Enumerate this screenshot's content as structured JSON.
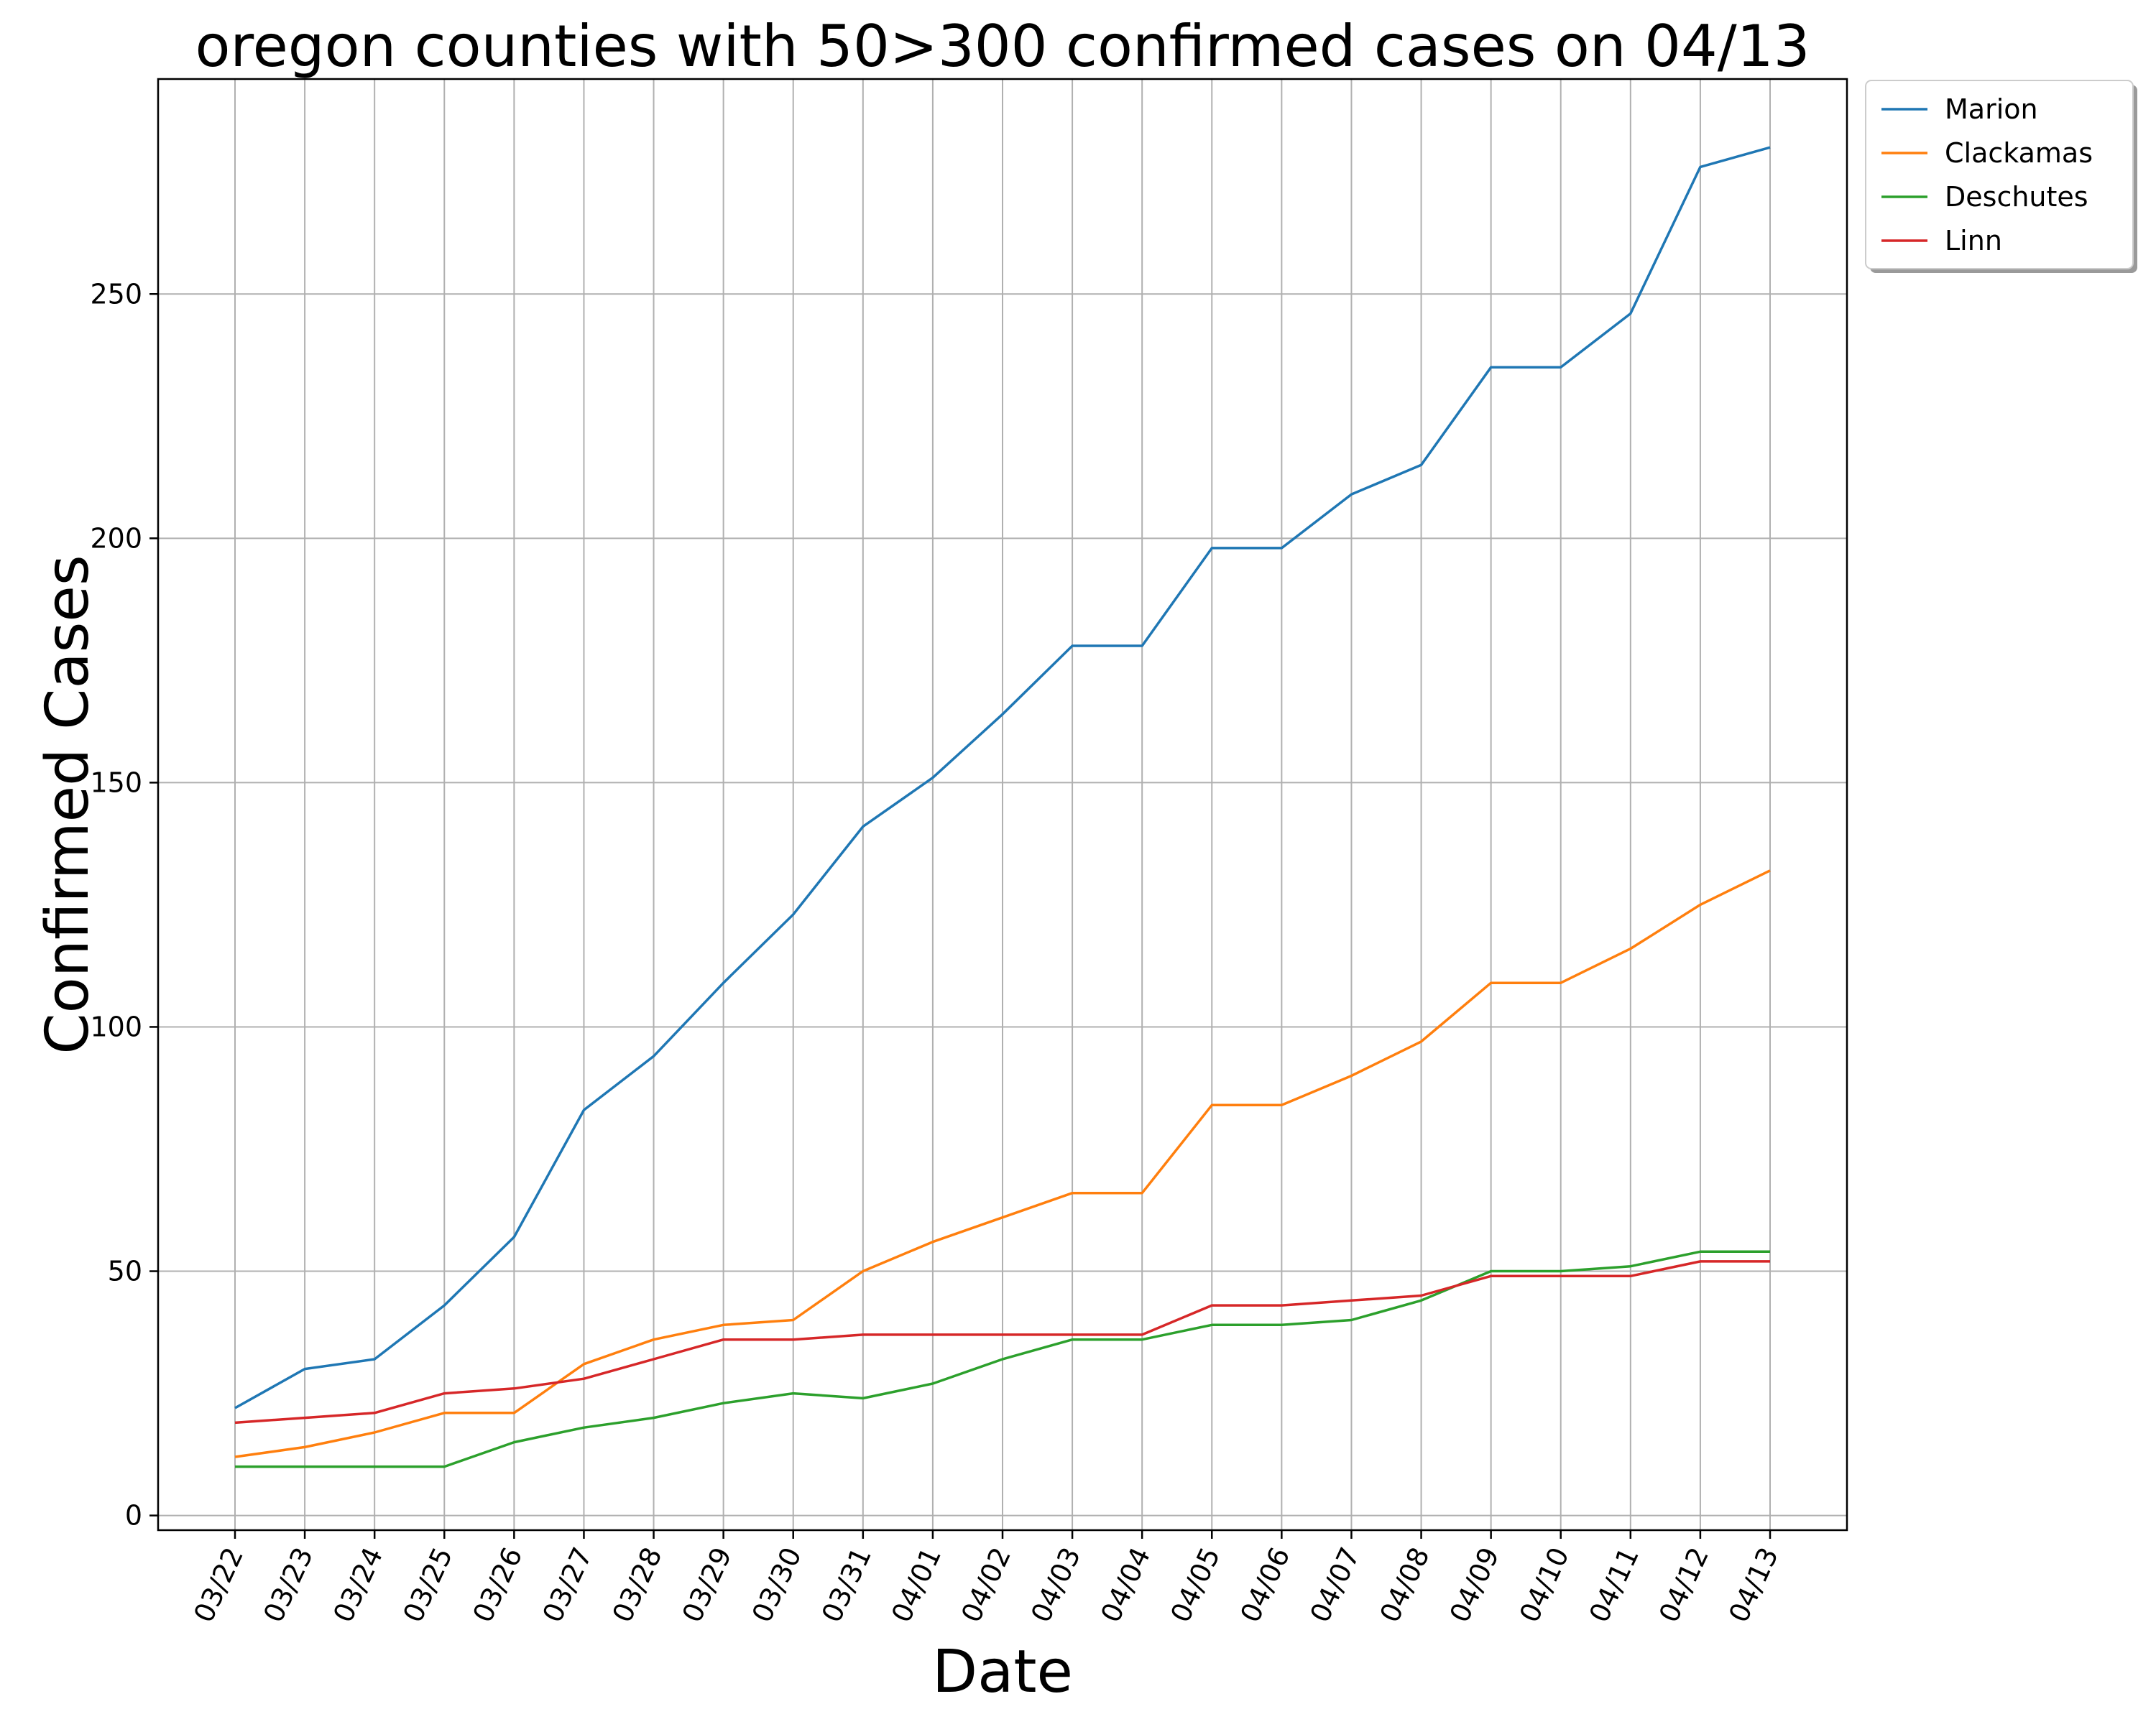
{
  "chart_data": {
    "type": "line",
    "title": "oregon counties with 50>300 confirmed cases on 04/13",
    "xlabel": "Date",
    "ylabel": "Confirmed Cases",
    "x": [
      "03/22",
      "03/23",
      "03/24",
      "03/25",
      "03/26",
      "03/27",
      "03/28",
      "03/29",
      "03/30",
      "03/31",
      "04/01",
      "04/02",
      "04/03",
      "04/04",
      "04/05",
      "04/06",
      "04/07",
      "04/08",
      "04/09",
      "04/10",
      "04/11",
      "04/12",
      "04/13"
    ],
    "ylim": [
      -3,
      294
    ],
    "yticks": [
      0,
      50,
      100,
      150,
      200,
      250
    ],
    "grid": true,
    "legend_position": "outside-top-right",
    "series": [
      {
        "name": "Marion",
        "color": "#1f77b4",
        "values": [
          22,
          30,
          32,
          43,
          57,
          83,
          94,
          109,
          123,
          141,
          151,
          164,
          178,
          178,
          198,
          198,
          209,
          215,
          235,
          235,
          246,
          276,
          280
        ]
      },
      {
        "name": "Clackamas",
        "color": "#ff7f0e",
        "values": [
          12,
          14,
          17,
          21,
          21,
          31,
          36,
          39,
          40,
          50,
          56,
          61,
          66,
          66,
          84,
          84,
          90,
          97,
          109,
          109,
          116,
          125,
          132
        ]
      },
      {
        "name": "Deschutes",
        "color": "#2ca02c",
        "values": [
          10,
          10,
          10,
          10,
          15,
          18,
          20,
          23,
          25,
          24,
          27,
          32,
          36,
          36,
          39,
          39,
          40,
          44,
          50,
          50,
          51,
          54,
          54
        ]
      },
      {
        "name": "Linn",
        "color": "#d62728",
        "values": [
          19,
          20,
          21,
          25,
          26,
          28,
          32,
          36,
          36,
          37,
          37,
          37,
          37,
          37,
          43,
          43,
          44,
          45,
          49,
          49,
          49,
          52,
          52
        ]
      }
    ]
  }
}
